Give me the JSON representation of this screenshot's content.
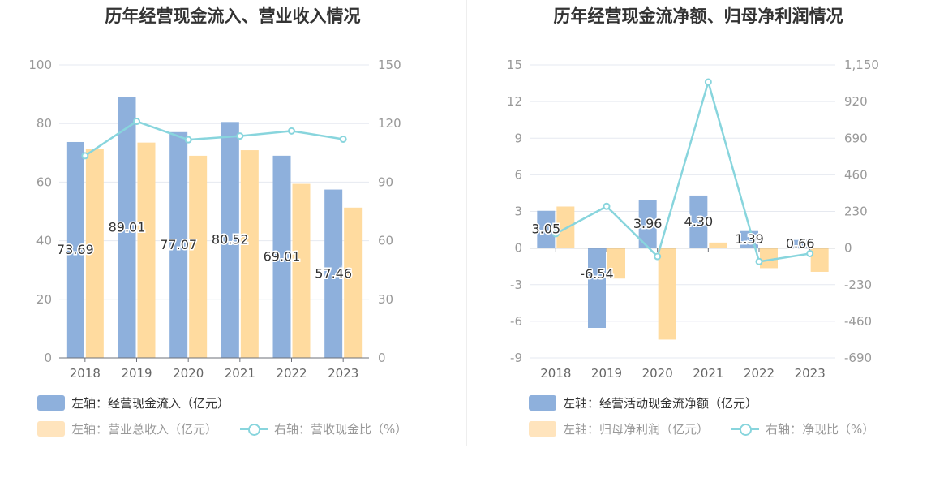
{
  "chart_data": [
    {
      "type": "bar",
      "title": "历年经营现金流入、营业收入情况",
      "categories": [
        "2018",
        "2019",
        "2020",
        "2021",
        "2022",
        "2023"
      ],
      "y_left": {
        "ticks": [
          0,
          20,
          40,
          60,
          80,
          100
        ],
        "ylim": [
          0,
          100
        ]
      },
      "y_right": {
        "ticks": [
          0,
          30,
          60,
          90,
          120,
          150
        ],
        "ylim": [
          0,
          150
        ]
      },
      "series": [
        {
          "name": "左轴：经营现金流入（亿元）",
          "axis": "left",
          "type": "bar",
          "color": "#8eb0dc",
          "values": [
            73.69,
            89.01,
            77.07,
            80.52,
            69.01,
            57.46
          ],
          "labels": [
            "73.69",
            "89.01",
            "77.07",
            "80.52",
            "69.01",
            "57.46"
          ]
        },
        {
          "name": "左轴：营业总收入（亿元）",
          "axis": "left",
          "type": "bar",
          "color": "#ffdb9f",
          "values": [
            71.2,
            73.5,
            69.0,
            70.9,
            59.4,
            51.3
          ]
        },
        {
          "name": "右轴：营收现金比（%）",
          "axis": "right",
          "type": "line",
          "color": "#88d5dd",
          "values": [
            103.5,
            121.1,
            111.7,
            113.6,
            116.2,
            112.0
          ]
        }
      ],
      "grid": true
    },
    {
      "type": "bar",
      "title": "历年经营现金流净额、归母净利润情况",
      "categories": [
        "2018",
        "2019",
        "2020",
        "2021",
        "2022",
        "2023"
      ],
      "y_left": {
        "ticks": [
          -9,
          -6,
          -3,
          0,
          3,
          6,
          9,
          12,
          15
        ],
        "ylim": [
          -9,
          15
        ]
      },
      "y_right": {
        "ticks": [
          "-690",
          "-460",
          "-230",
          "0",
          "230",
          "460",
          "690",
          "920",
          "1,150"
        ],
        "ylim": [
          -690,
          1150
        ]
      },
      "series": [
        {
          "name": "左轴：经营活动现金流净额（亿元）",
          "axis": "left",
          "type": "bar",
          "color": "#8eb0dc",
          "values": [
            3.05,
            -6.54,
            3.96,
            4.3,
            1.39,
            0.66
          ],
          "labels": [
            "3.05",
            "-6.54",
            "3.96",
            "4.30",
            "1.39",
            "0.66"
          ]
        },
        {
          "name": "左轴：归母净利润（亿元）",
          "axis": "left",
          "type": "bar",
          "color": "#ffdb9f",
          "values": [
            3.4,
            -2.5,
            -7.5,
            0.45,
            -1.65,
            -1.95
          ]
        },
        {
          "name": "右轴：净现比（%）",
          "axis": "right",
          "type": "line",
          "color": "#88d5dd",
          "values": [
            90,
            262,
            -53,
            1043,
            -85,
            -35
          ]
        }
      ],
      "grid": true
    }
  ]
}
